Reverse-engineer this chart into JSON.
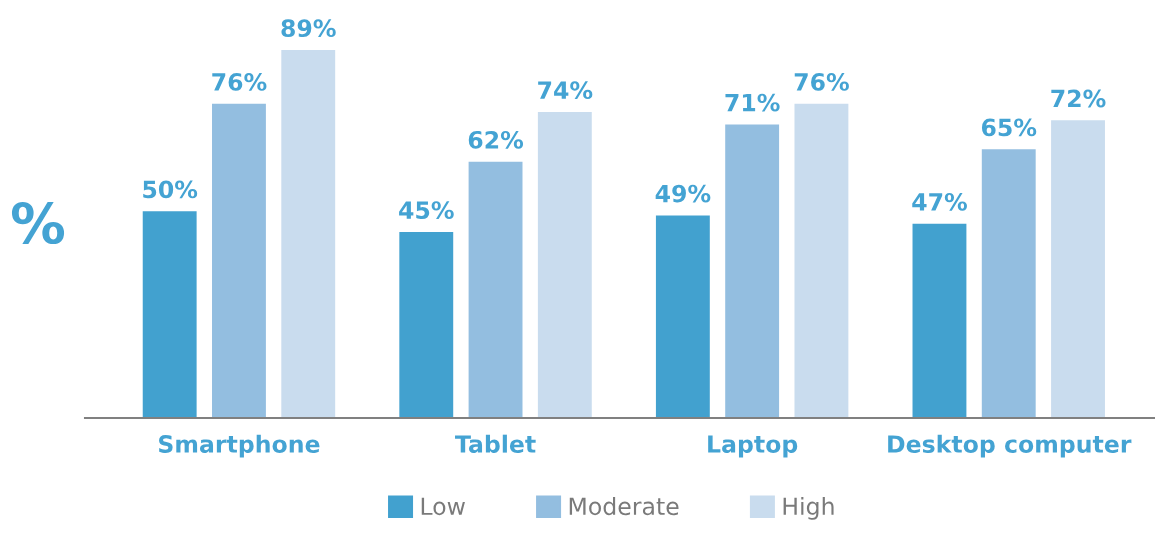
{
  "chart_data": {
    "type": "bar",
    "ylabel": "%",
    "categories": [
      "Smartphone",
      "Tablet",
      "Laptop",
      "Desktop computer"
    ],
    "series": [
      {
        "name": "Low",
        "color": "#42a1cf",
        "values": [
          50,
          45,
          49,
          47
        ],
        "value_labels": [
          "50%",
          "45%",
          "49%",
          "47%"
        ]
      },
      {
        "name": "Moderate",
        "color": "#93bee0",
        "values": [
          76,
          62,
          71,
          65
        ],
        "value_labels": [
          "76%",
          "62%",
          "71%",
          "65%"
        ]
      },
      {
        "name": "High",
        "color": "#c9dcee",
        "values": [
          89,
          74,
          76,
          72
        ],
        "value_labels": [
          "89%",
          "74%",
          "76%",
          "72%"
        ]
      }
    ],
    "tick_labels": "x",
    "grid": false,
    "legend": "bottom"
  }
}
